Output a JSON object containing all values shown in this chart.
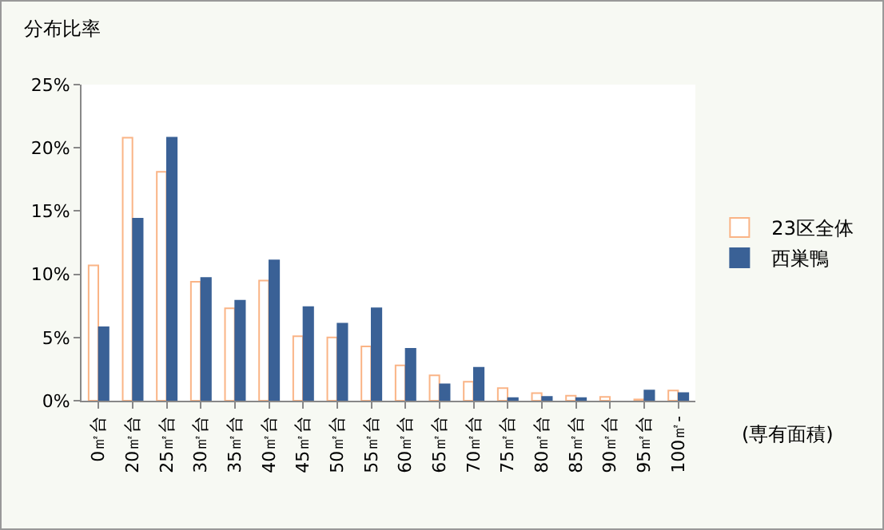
{
  "chart_data": {
    "type": "bar",
    "ylabel": "分布比率",
    "xlabel": "(専有面積)",
    "categories": [
      "0㎡台",
      "20㎡台",
      "25㎡台",
      "30㎡台",
      "35㎡台",
      "40㎡台",
      "45㎡台",
      "50㎡台",
      "55㎡台",
      "60㎡台",
      "65㎡台",
      "70㎡台",
      "75㎡台",
      "80㎡台",
      "85㎡台",
      "90㎡台",
      "95㎡台",
      "100㎡-"
    ],
    "series": [
      {
        "name": "23区全体",
        "color": "#fab486",
        "values": [
          10.7,
          20.8,
          18.1,
          9.4,
          7.3,
          9.5,
          5.1,
          5.0,
          4.3,
          2.8,
          2.0,
          1.5,
          1.0,
          0.6,
          0.4,
          0.3,
          0.1,
          0.8
        ]
      },
      {
        "name": "西巣鴨",
        "color": "#3a6196",
        "values": [
          5.8,
          14.4,
          20.8,
          9.7,
          7.9,
          11.1,
          7.4,
          6.1,
          7.3,
          4.1,
          1.3,
          2.6,
          0.2,
          0.3,
          0.2,
          null,
          0.8,
          0.6
        ]
      }
    ],
    "ylim": [
      0,
      25
    ],
    "yticks": [
      {
        "value": 0,
        "label": "0%"
      },
      {
        "value": 5,
        "label": "5%"
      },
      {
        "value": 10,
        "label": "10%"
      },
      {
        "value": 15,
        "label": "15%"
      },
      {
        "value": 20,
        "label": "20%"
      },
      {
        "value": 25,
        "label": "25%"
      }
    ],
    "grid": false,
    "legend": "right"
  }
}
